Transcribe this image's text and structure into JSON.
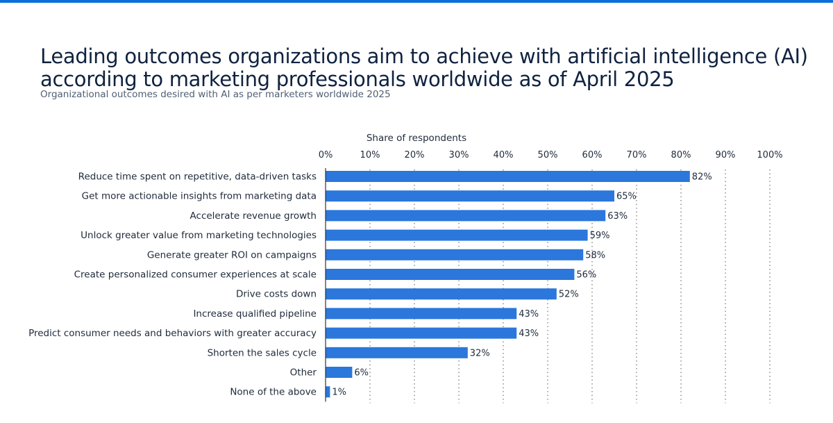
{
  "header": {
    "title": "Leading outcomes organizations aim to achieve with artificial intelligence (AI) according to marketing professionals worldwide as of April 2025",
    "subtitle": "Organizational outcomes desired with AI as per marketers worldwide 2025"
  },
  "colors": {
    "bar": "#2b77db",
    "accent": "#0a6fd6"
  },
  "chart_data": {
    "type": "bar",
    "orientation": "horizontal",
    "xlabel": "Share of respondents",
    "xlim": [
      0,
      100
    ],
    "ticks": [
      "0%",
      "10%",
      "20%",
      "30%",
      "40%",
      "50%",
      "60%",
      "70%",
      "80%",
      "90%",
      "100%"
    ],
    "grid": "vertical dotted",
    "categories": [
      "Reduce time spent on repetitive, data-driven tasks",
      "Get more actionable insights from marketing data",
      "Accelerate revenue growth",
      "Unlock greater value from marketing technologies",
      "Generate greater ROI on campaigns",
      "Create personalized consumer experiences at scale",
      "Drive costs down",
      "Increase qualified pipeline",
      "Predict consumer needs and behaviors with greater accuracy",
      "Shorten the sales cycle",
      "Other",
      "None of the above"
    ],
    "values": [
      82,
      65,
      63,
      59,
      58,
      56,
      52,
      43,
      43,
      32,
      6,
      1
    ],
    "labels": [
      "82%",
      "65%",
      "63%",
      "59%",
      "58%",
      "56%",
      "52%",
      "43%",
      "43%",
      "32%",
      "6%",
      "1%"
    ]
  }
}
